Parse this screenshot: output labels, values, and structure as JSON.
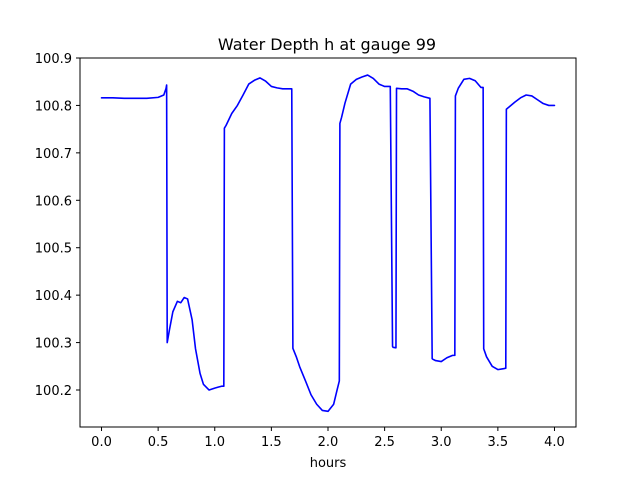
{
  "chart_data": {
    "type": "line",
    "title": "Water Depth h at gauge 99",
    "xlabel": "hours",
    "ylabel": "",
    "xlim": [
      -0.19,
      4.19
    ],
    "ylim": [
      100.122,
      100.9
    ],
    "xticks": [
      0.0,
      0.5,
      1.0,
      1.5,
      2.0,
      2.5,
      3.0,
      3.5,
      4.0
    ],
    "xtick_labels": [
      "0.0",
      "0.5",
      "1.0",
      "1.5",
      "2.0",
      "2.5",
      "3.0",
      "3.5",
      "4.0"
    ],
    "yticks": [
      100.2,
      100.3,
      100.4,
      100.5,
      100.6,
      100.7,
      100.8,
      100.9
    ],
    "ytick_labels": [
      "100.2",
      "100.3",
      "100.4",
      "100.5",
      "100.6",
      "100.7",
      "100.8",
      "100.9"
    ],
    "grid": false,
    "series": [
      {
        "color": "#0000ff",
        "x": [
          0.0,
          0.1,
          0.2,
          0.3,
          0.4,
          0.5,
          0.55,
          0.57,
          0.575,
          0.58,
          0.6,
          0.63,
          0.67,
          0.7,
          0.73,
          0.76,
          0.8,
          0.83,
          0.87,
          0.9,
          0.95,
          1.0,
          1.03,
          1.06,
          1.08,
          1.085,
          1.1,
          1.15,
          1.2,
          1.25,
          1.3,
          1.35,
          1.4,
          1.45,
          1.5,
          1.55,
          1.6,
          1.65,
          1.68,
          1.69,
          1.72,
          1.75,
          1.8,
          1.85,
          1.9,
          1.95,
          2.0,
          2.05,
          2.08,
          2.1,
          2.105,
          2.12,
          2.15,
          2.2,
          2.25,
          2.3,
          2.35,
          2.4,
          2.45,
          2.5,
          2.55,
          2.57,
          2.575,
          2.6,
          2.605,
          2.65,
          2.7,
          2.75,
          2.8,
          2.85,
          2.9,
          2.92,
          2.925,
          2.95,
          3.0,
          3.05,
          3.1,
          3.12,
          3.125,
          3.15,
          3.2,
          3.25,
          3.3,
          3.35,
          3.37,
          3.375,
          3.4,
          3.45,
          3.5,
          3.55,
          3.57,
          3.575,
          3.6,
          3.65,
          3.7,
          3.75,
          3.8,
          3.85,
          3.9,
          3.95,
          4.0
        ],
        "y": [
          100.816,
          100.816,
          100.815,
          100.815,
          100.815,
          100.817,
          100.822,
          100.836,
          100.843,
          100.3,
          100.327,
          100.365,
          100.387,
          100.384,
          100.395,
          100.392,
          100.348,
          100.287,
          100.235,
          100.212,
          100.2,
          100.204,
          100.206,
          100.208,
          100.208,
          100.752,
          100.758,
          100.783,
          100.8,
          100.822,
          100.845,
          100.853,
          100.858,
          100.851,
          100.84,
          100.837,
          100.835,
          100.835,
          100.835,
          100.288,
          100.27,
          100.249,
          100.22,
          100.19,
          100.17,
          100.157,
          100.155,
          100.17,
          100.2,
          100.219,
          100.762,
          100.775,
          100.805,
          100.845,
          100.855,
          100.86,
          100.864,
          100.857,
          100.845,
          100.84,
          100.84,
          100.292,
          100.29,
          100.289,
          100.836,
          100.835,
          100.835,
          100.83,
          100.822,
          100.818,
          100.815,
          100.266,
          100.265,
          100.262,
          100.26,
          100.268,
          100.273,
          100.273,
          100.82,
          100.836,
          100.855,
          100.857,
          100.852,
          100.838,
          100.838,
          100.287,
          100.27,
          100.25,
          100.243,
          100.245,
          100.246,
          100.792,
          100.797,
          100.807,
          100.816,
          100.822,
          100.82,
          100.812,
          100.804,
          100.8,
          100.8
        ]
      }
    ]
  }
}
